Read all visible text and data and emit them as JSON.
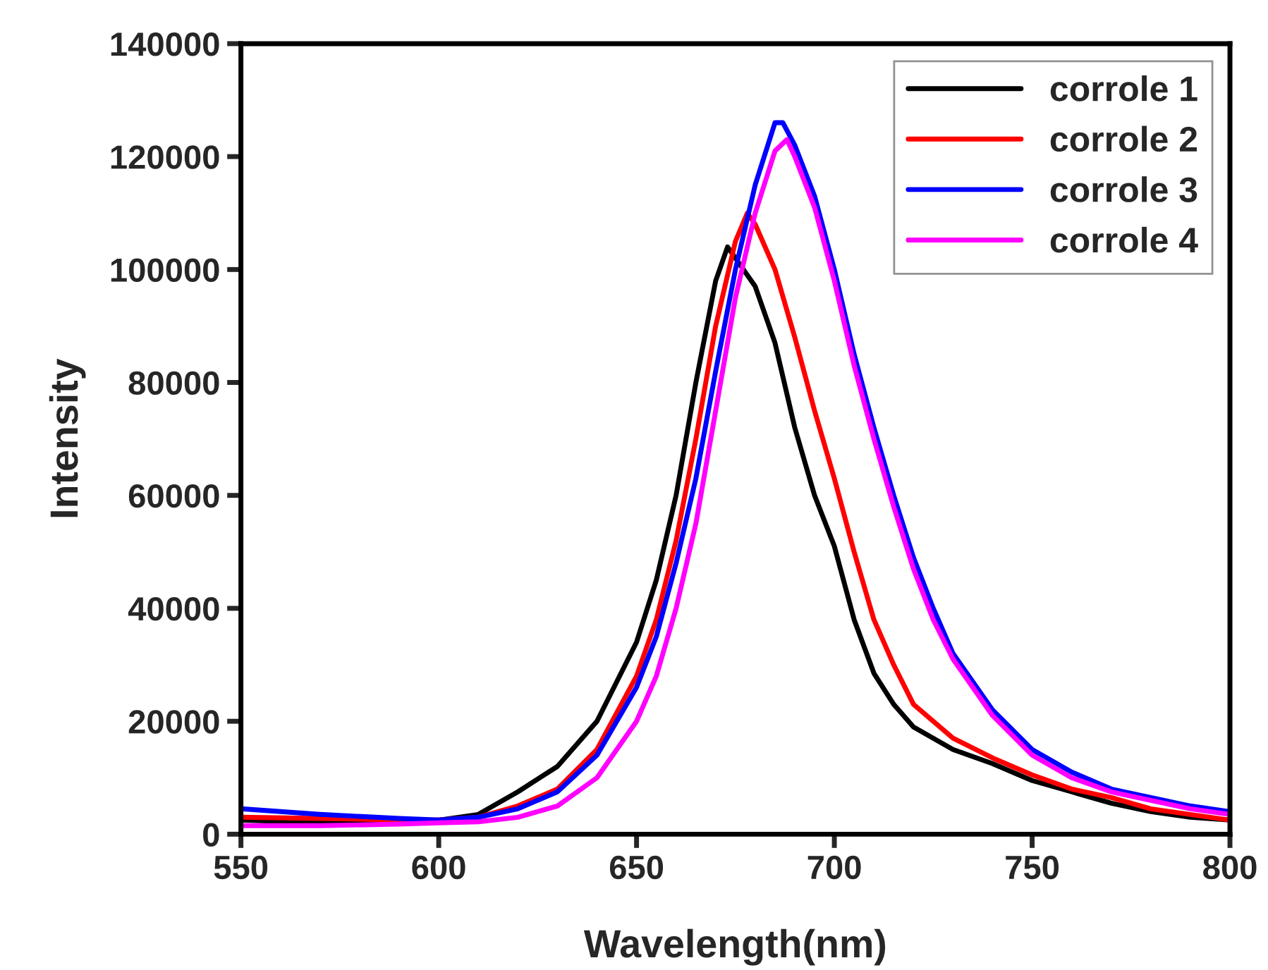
{
  "chart_data": {
    "type": "line",
    "xlabel": "Wavelength(nm)",
    "ylabel": "Intensity",
    "xlim": [
      550,
      800
    ],
    "xticks": [
      550,
      600,
      650,
      700,
      750,
      800
    ],
    "ylim": [
      0,
      140000
    ],
    "yticks": [
      0,
      20000,
      40000,
      60000,
      80000,
      100000,
      120000,
      140000
    ],
    "grid": false,
    "legend": "top right",
    "marker": "none",
    "line_style": "solid",
    "series": [
      {
        "name": "corrole 1",
        "color": "#000000",
        "x": [
          550,
          570,
          590,
          600,
          610,
          620,
          630,
          640,
          650,
          655,
          660,
          665,
          670,
          673,
          675,
          680,
          685,
          690,
          695,
          700,
          705,
          710,
          715,
          720,
          730,
          740,
          750,
          760,
          770,
          780,
          790,
          800
        ],
        "values": [
          2500,
          2000,
          2000,
          2500,
          3500,
          7500,
          12000,
          20000,
          34000,
          45000,
          60000,
          80000,
          98000,
          104000,
          102000,
          97000,
          87000,
          72000,
          60000,
          51000,
          38000,
          28500,
          23000,
          19000,
          15000,
          12500,
          9500,
          7500,
          5500,
          4000,
          3000,
          2500
        ]
      },
      {
        "name": "corrole 2",
        "color": "#ff0000",
        "x": [
          550,
          570,
          590,
          600,
          610,
          620,
          630,
          640,
          650,
          655,
          660,
          665,
          670,
          675,
          678,
          680,
          685,
          690,
          695,
          700,
          705,
          710,
          715,
          720,
          730,
          740,
          750,
          760,
          770,
          780,
          790,
          800
        ],
        "values": [
          3000,
          2800,
          2500,
          2500,
          3000,
          5000,
          8000,
          15000,
          28000,
          38000,
          52000,
          70000,
          90000,
          105000,
          110000,
          108000,
          100000,
          88000,
          75000,
          63000,
          50000,
          38000,
          30000,
          23000,
          17000,
          13500,
          10500,
          8000,
          6500,
          4500,
          3500,
          2500
        ]
      },
      {
        "name": "corrole 3",
        "color": "#0000ff",
        "x": [
          550,
          570,
          590,
          600,
          610,
          620,
          630,
          640,
          650,
          655,
          660,
          665,
          670,
          675,
          680,
          685,
          687,
          690,
          695,
          700,
          705,
          710,
          715,
          720,
          725,
          730,
          740,
          750,
          760,
          770,
          780,
          790,
          800
        ],
        "values": [
          4500,
          3500,
          2800,
          2500,
          3000,
          4500,
          7500,
          14000,
          26000,
          35000,
          48000,
          63000,
          82000,
          100000,
          115000,
          126000,
          126000,
          122000,
          113000,
          100000,
          85000,
          72000,
          60000,
          49000,
          40000,
          32000,
          22000,
          15000,
          11000,
          8000,
          6500,
          5000,
          4000
        ]
      },
      {
        "name": "corrole 4",
        "color": "#ff00ff",
        "x": [
          550,
          570,
          590,
          600,
          610,
          620,
          630,
          640,
          650,
          655,
          660,
          665,
          670,
          675,
          680,
          685,
          688,
          690,
          695,
          700,
          705,
          710,
          715,
          720,
          725,
          730,
          740,
          750,
          760,
          770,
          780,
          790,
          800
        ],
        "values": [
          1500,
          1500,
          1800,
          2000,
          2200,
          3000,
          5000,
          10000,
          20000,
          28000,
          40000,
          55000,
          75000,
          95000,
          110000,
          121000,
          123000,
          120000,
          111000,
          98000,
          83000,
          70000,
          58000,
          47000,
          38000,
          31000,
          21000,
          14000,
          10000,
          7500,
          6000,
          4500,
          3500
        ]
      }
    ]
  }
}
